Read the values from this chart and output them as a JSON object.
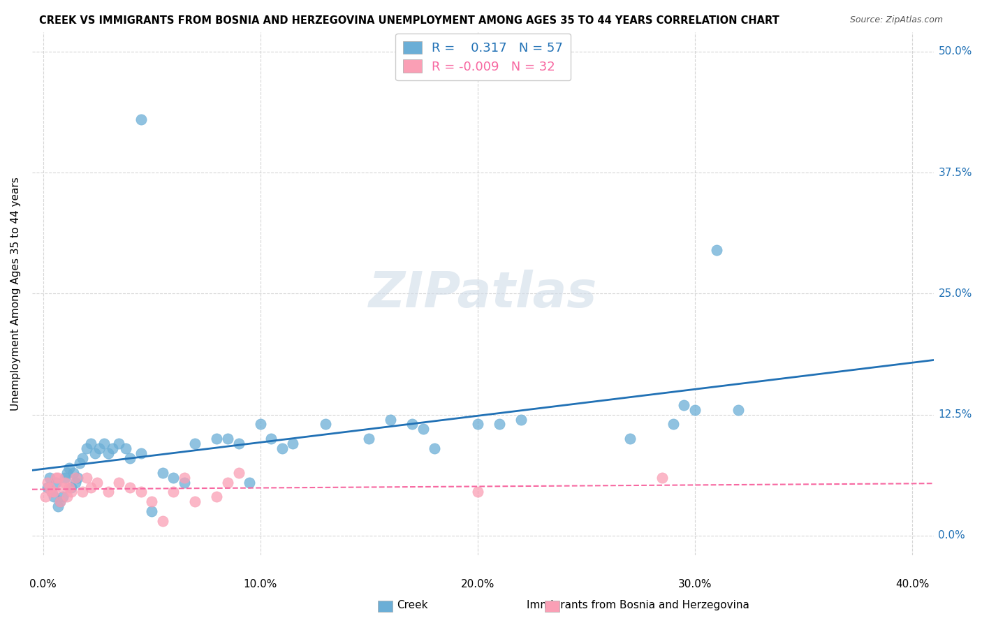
{
  "title": "CREEK VS IMMIGRANTS FROM BOSNIA AND HERZEGOVINA UNEMPLOYMENT AMONG AGES 35 TO 44 YEARS CORRELATION CHART",
  "source": "Source: ZipAtlas.com",
  "ylabel": "Unemployment Among Ages 35 to 44 years",
  "xlabel_ticks": [
    "0.0%",
    "10.0%",
    "20.0%",
    "30.0%",
    "40.0%"
  ],
  "xlabel_vals": [
    0.0,
    0.1,
    0.2,
    0.3,
    0.4
  ],
  "ylabel_ticks": [
    "0.0%",
    "12.5%",
    "25.0%",
    "37.5%",
    "50.0%"
  ],
  "ylabel_vals": [
    0.0,
    0.125,
    0.25,
    0.375,
    0.5
  ],
  "xlim": [
    -0.005,
    0.41
  ],
  "ylim": [
    -0.02,
    0.52
  ],
  "R_creek": 0.317,
  "N_creek": 57,
  "R_bosnia": -0.009,
  "N_bosnia": 32,
  "creek_color": "#6baed6",
  "bosnia_color": "#fa9fb5",
  "trendline_creek_color": "#2171b5",
  "trendline_bosnia_color": "#f768a1",
  "watermark": "ZIPatlas",
  "legend_labels": [
    "Creek",
    "Immigrants from Bosnia and Herzegovina"
  ],
  "creek_x": [
    0.002,
    0.003,
    0.004,
    0.005,
    0.006,
    0.007,
    0.008,
    0.009,
    0.01,
    0.011,
    0.012,
    0.013,
    0.014,
    0.015,
    0.016,
    0.017,
    0.018,
    0.02,
    0.022,
    0.024,
    0.026,
    0.028,
    0.03,
    0.032,
    0.035,
    0.038,
    0.04,
    0.045,
    0.05,
    0.055,
    0.06,
    0.065,
    0.07,
    0.08,
    0.085,
    0.09,
    0.095,
    0.1,
    0.105,
    0.11,
    0.115,
    0.13,
    0.15,
    0.16,
    0.17,
    0.175,
    0.18,
    0.2,
    0.21,
    0.22,
    0.27,
    0.29,
    0.295,
    0.3,
    0.31,
    0.32,
    0.045
  ],
  "creek_y": [
    0.05,
    0.06,
    0.045,
    0.04,
    0.055,
    0.03,
    0.035,
    0.04,
    0.06,
    0.065,
    0.07,
    0.05,
    0.065,
    0.055,
    0.06,
    0.075,
    0.08,
    0.09,
    0.095,
    0.085,
    0.09,
    0.095,
    0.085,
    0.09,
    0.095,
    0.09,
    0.08,
    0.085,
    0.025,
    0.065,
    0.06,
    0.055,
    0.095,
    0.1,
    0.1,
    0.095,
    0.055,
    0.115,
    0.1,
    0.09,
    0.095,
    0.115,
    0.1,
    0.12,
    0.115,
    0.11,
    0.09,
    0.115,
    0.115,
    0.12,
    0.1,
    0.115,
    0.135,
    0.13,
    0.295,
    0.13,
    0.43
  ],
  "bosnia_x": [
    0.001,
    0.002,
    0.003,
    0.004,
    0.005,
    0.006,
    0.007,
    0.008,
    0.009,
    0.01,
    0.011,
    0.012,
    0.013,
    0.015,
    0.018,
    0.02,
    0.022,
    0.025,
    0.03,
    0.035,
    0.04,
    0.045,
    0.05,
    0.055,
    0.06,
    0.065,
    0.07,
    0.08,
    0.085,
    0.09,
    0.2,
    0.285
  ],
  "bosnia_y": [
    0.04,
    0.055,
    0.05,
    0.045,
    0.045,
    0.06,
    0.06,
    0.035,
    0.05,
    0.055,
    0.04,
    0.05,
    0.045,
    0.06,
    0.045,
    0.06,
    0.05,
    0.055,
    0.045,
    0.055,
    0.05,
    0.045,
    0.035,
    0.015,
    0.045,
    0.06,
    0.035,
    0.04,
    0.055,
    0.065,
    0.045,
    0.06
  ]
}
